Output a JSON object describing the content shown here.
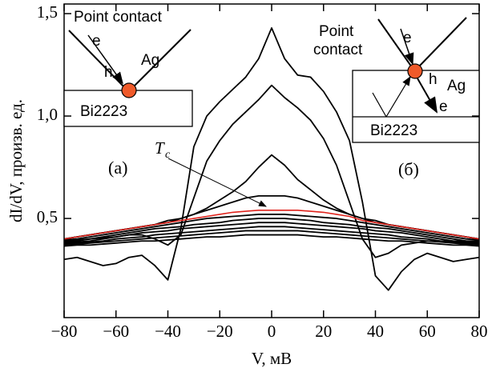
{
  "chart_data": {
    "type": "line",
    "x_label": "V, мВ",
    "y_label": "dI/dV, произв. ед.",
    "xlim": [
      -80,
      80
    ],
    "ylim": [
      0.016,
      1.547
    ],
    "xticks": [
      {
        "value": -80,
        "label": "−80"
      },
      {
        "value": -60,
        "label": "−60"
      },
      {
        "value": -40,
        "label": "−40"
      },
      {
        "value": -20,
        "label": "−20"
      },
      0,
      20,
      40,
      60,
      80
    ],
    "yticks": [
      {
        "value": 0.5,
        "label": "0,5"
      },
      {
        "value": 1.0,
        "label": "1,0"
      },
      {
        "value": 1.5,
        "label": "1,5"
      }
    ],
    "x": [
      -80,
      -75,
      -70,
      -65,
      -60,
      -55,
      -50,
      -45,
      -40,
      -35,
      -30,
      -25,
      -20,
      -15,
      -10,
      -5,
      0,
      5,
      10,
      15,
      20,
      25,
      30,
      35,
      40,
      45,
      50,
      55,
      60,
      65,
      70,
      75,
      80
    ],
    "series": [
      {
        "color": "#000000",
        "values": [
          0.3,
          0.31,
          0.29,
          0.27,
          0.28,
          0.31,
          0.32,
          0.27,
          0.2,
          0.45,
          0.85,
          1.0,
          1.07,
          1.13,
          1.19,
          1.28,
          1.43,
          1.28,
          1.2,
          1.19,
          1.12,
          1.02,
          0.88,
          0.58,
          0.22,
          0.15,
          0.24,
          0.3,
          0.33,
          0.31,
          0.29,
          0.3,
          0.31
        ]
      },
      {
        "color": "#000000",
        "values": [
          0.39,
          0.395,
          0.4,
          0.405,
          0.41,
          0.42,
          0.42,
          0.4,
          0.37,
          0.42,
          0.6,
          0.78,
          0.88,
          0.96,
          1.02,
          1.08,
          1.15,
          1.09,
          1.04,
          0.98,
          0.89,
          0.76,
          0.58,
          0.4,
          0.31,
          0.33,
          0.37,
          0.38,
          0.39,
          0.39,
          0.39,
          0.39,
          0.39
        ]
      },
      {
        "color": "#000000",
        "values": [
          0.4,
          0.41,
          0.42,
          0.43,
          0.44,
          0.45,
          0.46,
          0.47,
          0.48,
          0.5,
          0.52,
          0.55,
          0.59,
          0.63,
          0.68,
          0.75,
          0.81,
          0.76,
          0.69,
          0.64,
          0.59,
          0.55,
          0.52,
          0.5,
          0.48,
          0.47,
          0.46,
          0.45,
          0.44,
          0.43,
          0.42,
          0.41,
          0.4
        ]
      },
      {
        "color": "#000000",
        "values": [
          0.4,
          0.41,
          0.42,
          0.43,
          0.44,
          0.45,
          0.46,
          0.47,
          0.49,
          0.5,
          0.52,
          0.54,
          0.56,
          0.58,
          0.6,
          0.61,
          0.61,
          0.61,
          0.6,
          0.58,
          0.56,
          0.54,
          0.52,
          0.5,
          0.49,
          0.47,
          0.46,
          0.45,
          0.44,
          0.43,
          0.42,
          0.41,
          0.4
        ]
      },
      {
        "color": "#000000",
        "values": [
          0.395,
          0.4,
          0.41,
          0.42,
          0.43,
          0.44,
          0.45,
          0.46,
          0.47,
          0.48,
          0.49,
          0.5,
          0.505,
          0.51,
          0.515,
          0.52,
          0.52,
          0.52,
          0.515,
          0.51,
          0.505,
          0.5,
          0.49,
          0.48,
          0.47,
          0.46,
          0.45,
          0.44,
          0.43,
          0.42,
          0.41,
          0.4,
          0.395
        ]
      },
      {
        "color": "#000000",
        "values": [
          0.385,
          0.39,
          0.4,
          0.41,
          0.42,
          0.43,
          0.44,
          0.45,
          0.455,
          0.46,
          0.47,
          0.475,
          0.48,
          0.49,
          0.495,
          0.5,
          0.5,
          0.5,
          0.495,
          0.49,
          0.48,
          0.475,
          0.47,
          0.46,
          0.455,
          0.45,
          0.44,
          0.43,
          0.42,
          0.41,
          0.4,
          0.39,
          0.385
        ]
      },
      {
        "color": "#000000",
        "values": [
          0.38,
          0.385,
          0.39,
          0.4,
          0.41,
          0.42,
          0.43,
          0.435,
          0.44,
          0.45,
          0.455,
          0.46,
          0.465,
          0.47,
          0.475,
          0.48,
          0.48,
          0.48,
          0.475,
          0.47,
          0.465,
          0.46,
          0.455,
          0.45,
          0.44,
          0.435,
          0.43,
          0.42,
          0.41,
          0.4,
          0.39,
          0.385,
          0.38
        ]
      },
      {
        "color": "#000000",
        "values": [
          0.375,
          0.38,
          0.385,
          0.39,
          0.4,
          0.405,
          0.41,
          0.42,
          0.425,
          0.43,
          0.435,
          0.44,
          0.445,
          0.45,
          0.455,
          0.46,
          0.46,
          0.46,
          0.455,
          0.45,
          0.445,
          0.44,
          0.435,
          0.43,
          0.425,
          0.42,
          0.41,
          0.405,
          0.4,
          0.39,
          0.385,
          0.38,
          0.375
        ]
      },
      {
        "color": "#000000",
        "values": [
          0.37,
          0.375,
          0.38,
          0.385,
          0.39,
          0.395,
          0.4,
          0.405,
          0.41,
          0.415,
          0.42,
          0.425,
          0.43,
          0.435,
          0.44,
          0.44,
          0.44,
          0.44,
          0.44,
          0.435,
          0.43,
          0.425,
          0.42,
          0.415,
          0.41,
          0.405,
          0.4,
          0.395,
          0.39,
          0.385,
          0.38,
          0.375,
          0.37
        ]
      },
      {
        "color": "#000000",
        "values": [
          0.365,
          0.37,
          0.37,
          0.375,
          0.38,
          0.385,
          0.39,
          0.39,
          0.395,
          0.4,
          0.405,
          0.41,
          0.41,
          0.415,
          0.42,
          0.42,
          0.42,
          0.42,
          0.42,
          0.415,
          0.41,
          0.41,
          0.405,
          0.4,
          0.395,
          0.39,
          0.39,
          0.385,
          0.38,
          0.375,
          0.37,
          0.37,
          0.365
        ]
      },
      {
        "color": "#e0231c",
        "values": [
          0.4,
          0.41,
          0.42,
          0.43,
          0.44,
          0.45,
          0.46,
          0.47,
          0.48,
          0.49,
          0.5,
          0.51,
          0.52,
          0.53,
          0.535,
          0.54,
          0.54,
          0.54,
          0.54,
          0.535,
          0.53,
          0.52,
          0.51,
          0.49,
          0.48,
          0.47,
          0.46,
          0.45,
          0.44,
          0.43,
          0.42,
          0.41,
          0.4
        ]
      }
    ],
    "annotations": {
      "panel_a": "(a)",
      "panel_b": "(б)",
      "tc_main": "T",
      "tc_sub": "c"
    },
    "inset_a": {
      "title": "Point contact",
      "e": "e",
      "h": "h",
      "metal": "Ag",
      "sample": "Bi2223"
    },
    "inset_b": {
      "title_1": "Point",
      "title_2": "contact",
      "e_in": "e",
      "h": "h",
      "metal": "Ag",
      "e_out": "e",
      "sample": "Bi2223"
    }
  }
}
